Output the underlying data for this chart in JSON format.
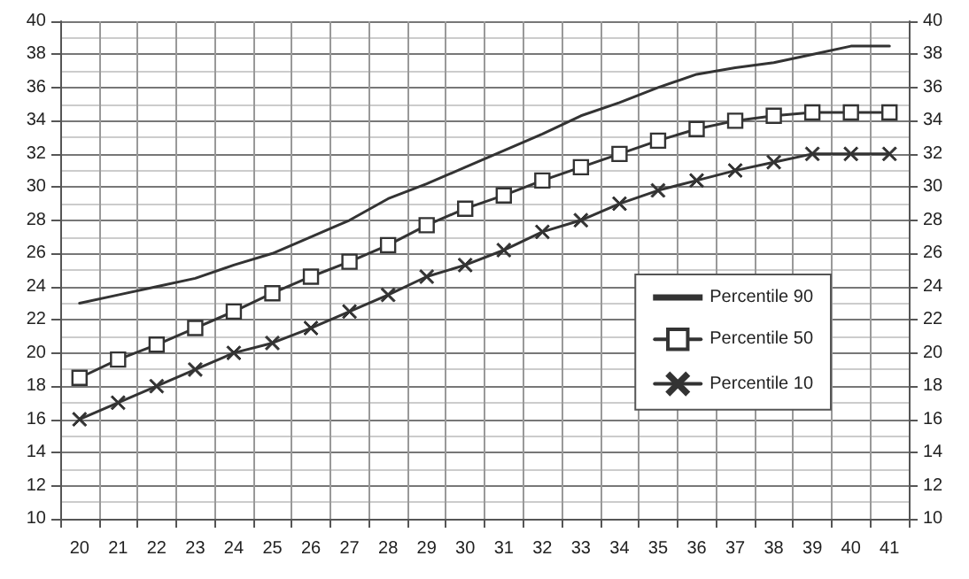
{
  "chart_data": {
    "type": "line",
    "categories": [
      "20",
      "21",
      "22",
      "23",
      "24",
      "25",
      "26",
      "27",
      "28",
      "29",
      "30",
      "31",
      "32",
      "33",
      "34",
      "35",
      "36",
      "37",
      "38",
      "39",
      "40",
      "41"
    ],
    "series": [
      {
        "name": "Percentile 90",
        "color": "#333333",
        "marker": "none",
        "values": [
          23,
          23.5,
          24,
          24.5,
          25.3,
          26,
          27,
          28,
          29.3,
          30.2,
          31.2,
          32.2,
          33.2,
          34.3,
          35.1,
          36,
          36.8,
          37.2,
          37.5,
          38,
          38.5,
          38.5
        ]
      },
      {
        "name": "Percentile 50",
        "color": "#333333",
        "marker": "square",
        "values": [
          18.5,
          19.6,
          20.5,
          21.5,
          22.5,
          23.6,
          24.6,
          25.5,
          26.5,
          27.7,
          28.7,
          29.5,
          30.4,
          31.2,
          32,
          32.8,
          33.5,
          34,
          34.3,
          34.5,
          34.5,
          34.5
        ]
      },
      {
        "name": "Percentile 10",
        "color": "#333333",
        "marker": "cross",
        "values": [
          16,
          17,
          18,
          19,
          20,
          20.6,
          21.5,
          22.5,
          23.5,
          24.6,
          25.3,
          26.2,
          27.3,
          28,
          29,
          29.8,
          30.4,
          31,
          31.5,
          32,
          32,
          32
        ]
      }
    ],
    "ylim": [
      10,
      40
    ],
    "yticks": [
      10,
      12,
      14,
      16,
      18,
      20,
      22,
      24,
      26,
      28,
      30,
      32,
      34,
      36,
      38,
      40
    ],
    "y2lim": [
      10,
      40
    ],
    "y2ticks": [
      10,
      12,
      14,
      16,
      18,
      20,
      22,
      24,
      26,
      28,
      30,
      32,
      34,
      36,
      38,
      40
    ],
    "grid": true,
    "legend": "right",
    "line_style": "solid"
  }
}
